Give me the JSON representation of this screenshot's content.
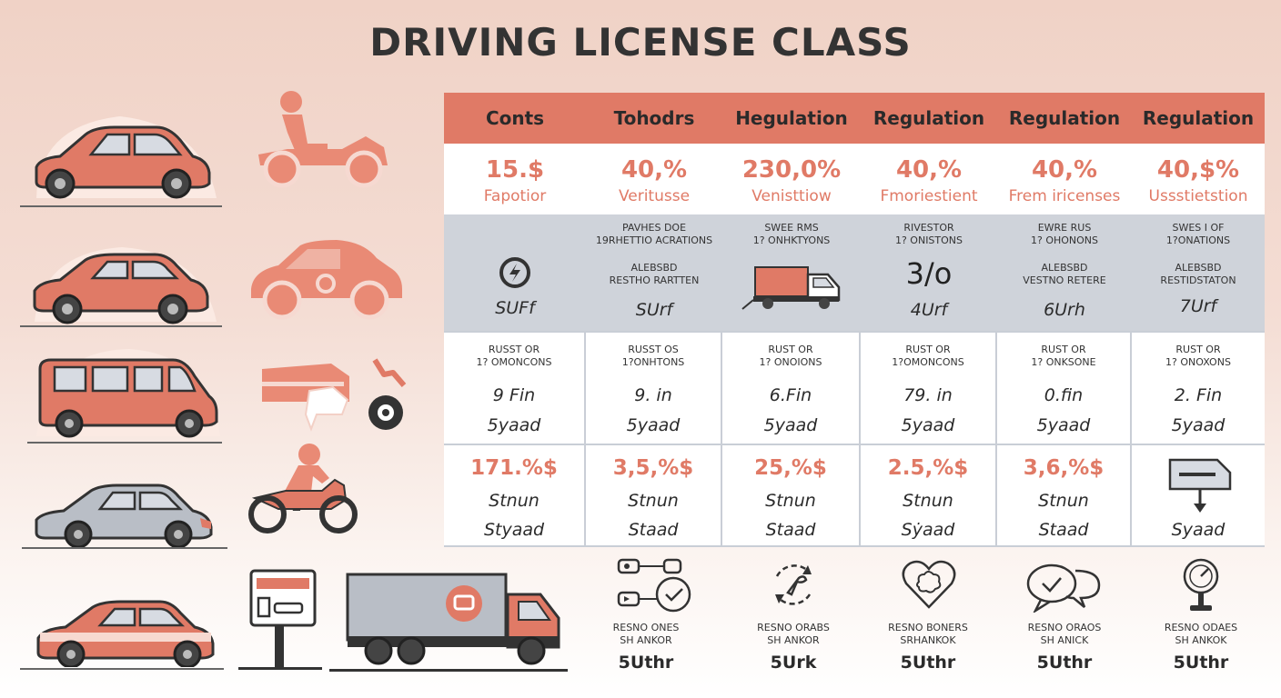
{
  "title": "DRIVING LICENSE CLASS",
  "colors": {
    "accent": "#e07a66",
    "band": "#cfd3da",
    "dark": "#2b2b2b"
  },
  "icons_left": [
    "sedan-icon",
    "atv-rider-icon",
    "sedan-icon",
    "compact-car-icon",
    "van-icon",
    "damaged-vehicle-icon",
    "gray-sedan-icon",
    "motorcycle-rider-icon",
    "striped-sedan-icon",
    "license-sign-icon",
    "truck-icon"
  ],
  "table": {
    "headers": [
      "Conts",
      "Tohodrs",
      "Hegulation",
      "Regulation",
      "Regulation",
      "Regulation"
    ],
    "row1": [
      {
        "value": "15.$",
        "label": "Fapotior"
      },
      {
        "value": "40,%",
        "label": "Veritusse"
      },
      {
        "value": "230,0%",
        "label": "Venisttiow"
      },
      {
        "value": "40,%",
        "label": "Fmoriestient"
      },
      {
        "value": "40,%",
        "label": "Frem iricenses"
      },
      {
        "value": "40,$%",
        "label": "Ussstietstion"
      }
    ],
    "row2": [
      {
        "top": "",
        "top2": "",
        "mid": "",
        "mid2": "",
        "big": "",
        "icon": "gear-icon",
        "value": "SUFf"
      },
      {
        "top": "PAVHES DOE",
        "top2": "19RHETTIO ACRATIONS",
        "mid": "ALEBSBD",
        "mid2": "RESTHO RARTTEN",
        "big": "",
        "icon": "",
        "value": "SUrf"
      },
      {
        "top": "SWEE RMS",
        "top2": "1? ONHKTYONS",
        "mid": "",
        "mid2": "",
        "big": "",
        "icon": "box-truck-icon",
        "value": ""
      },
      {
        "top": "RIVESTOR",
        "top2": "1? ONISTONS",
        "mid": "",
        "mid2": "",
        "big": "3/o",
        "icon": "",
        "value": "4Urf"
      },
      {
        "top": "EWRE RUS",
        "top2": "1? OHONONS",
        "mid": "ALEBSBD",
        "mid2": "VESTNO RETERE",
        "big": "",
        "icon": "",
        "value": "6Urh"
      },
      {
        "top": "SWES I OF",
        "top2": "1?ONATIONS",
        "mid": "ALEBSBD",
        "mid2": "RESTIDSTATON",
        "big": "",
        "icon": "",
        "value": "7Urf"
      }
    ],
    "row3": [
      {
        "top": "RUSST OR",
        "top2": "1? OMONCONS",
        "mid": "9 Fin",
        "low": "5yaad"
      },
      {
        "top": "RUSST OS",
        "top2": "1?ONHTONS",
        "mid": "9. in",
        "low": "5yaad"
      },
      {
        "top": "RUST OR",
        "top2": "1? ONOIONS",
        "mid": "6.Fin",
        "low": "5yaad"
      },
      {
        "top": "RUST OR",
        "top2": "1?OMONCONS",
        "mid": "79. in",
        "low": "5yaad"
      },
      {
        "top": "RUST OR",
        "top2": "1? ONKSONE",
        "mid": "0.fin",
        "low": "5yaad"
      },
      {
        "top": "RUST OR",
        "top2": "1? ONOXONS",
        "mid": "2. Fin",
        "low": "5yaad"
      }
    ],
    "row4": [
      {
        "value": "171.%$",
        "mid": "Stnun",
        "low": "Styaad"
      },
      {
        "value": "3,5,%$",
        "mid": "Stnun",
        "low": "Staad"
      },
      {
        "value": "25,%$",
        "mid": "Stnun",
        "low": "Staad"
      },
      {
        "value": "2.5,%$",
        "mid": "Stnun",
        "low": "Sẏaad"
      },
      {
        "value": "3,6,%$",
        "mid": "Stnun",
        "low": "Staad"
      },
      {
        "value": "",
        "mid": "",
        "low": "Syaad",
        "icon": "document-arrow-icon"
      }
    ]
  },
  "bottom": [
    {
      "icon": "toggle-check-icon",
      "t1": "RESNO ONES",
      "t2": "SH ANKOR",
      "value": "5Uthr"
    },
    {
      "icon": "refresh-wrench-icon",
      "t1": "RESNO ORABS",
      "t2": "SH ANKOR",
      "value": "5Urk"
    },
    {
      "icon": "heart-brain-icon",
      "t1": "RESNO BONERS",
      "t2": "SRHANKOK",
      "value": "5Uthr"
    },
    {
      "icon": "chat-check-icon",
      "t1": "RESNO ORAOS",
      "t2": "SH ANICK",
      "value": "5Uthr"
    },
    {
      "icon": "gauge-stand-icon",
      "t1": "RESNO ODAES",
      "t2": "SH ANKOK",
      "value": "5Uthr"
    }
  ]
}
